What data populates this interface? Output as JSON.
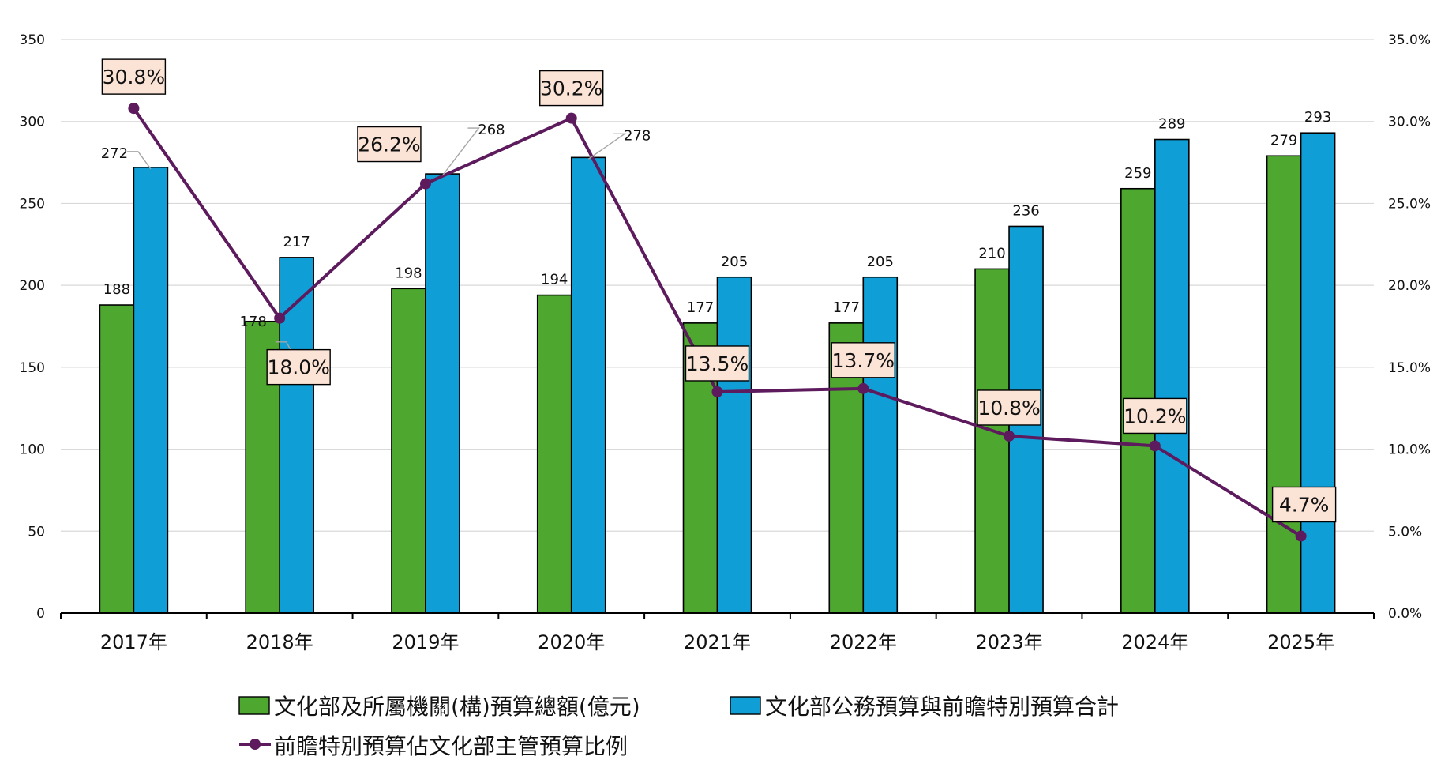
{
  "chart_data": {
    "type": "bar",
    "categories": [
      "2017年",
      "2018年",
      "2019年",
      "2020年",
      "2021年",
      "2022年",
      "2023年",
      "2024年",
      "2025年"
    ],
    "series": [
      {
        "name": "文化部及所屬機關(構)預算總額(億元)",
        "type": "bar",
        "axis": "left",
        "color": "#4ea72e",
        "values": [
          188,
          178,
          198,
          194,
          177,
          177,
          210,
          259,
          279
        ]
      },
      {
        "name": "文化部公務預算與前瞻特別預算合計",
        "type": "bar",
        "axis": "left",
        "color": "#0f9ed5",
        "values": [
          272,
          217,
          268,
          278,
          205,
          205,
          236,
          289,
          293
        ]
      },
      {
        "name": "前瞻特別預算佔文化部主管預算比例",
        "type": "line",
        "axis": "right",
        "color": "#5d1a5d",
        "values": [
          30.8,
          18.0,
          26.2,
          30.2,
          13.5,
          13.7,
          10.8,
          10.2,
          4.7
        ],
        "labels": [
          "30.8%",
          "18.0%",
          "26.2%",
          "30.2%",
          "13.5%",
          "13.7%",
          "10.8%",
          "10.2%",
          "4.7%"
        ]
      }
    ],
    "y_left": {
      "range": [
        0,
        350
      ],
      "ticks": [
        "0",
        "50",
        "100",
        "150",
        "200",
        "250",
        "300",
        "350"
      ]
    },
    "y_right": {
      "range": [
        0,
        35
      ],
      "ticks": [
        "0.0%",
        "5.0%",
        "10.0%",
        "15.0%",
        "20.0%",
        "25.0%",
        "30.0%",
        "35.0%"
      ]
    },
    "grid": true,
    "legend_position": "bottom",
    "label_box_color": "#fbe3d6"
  }
}
